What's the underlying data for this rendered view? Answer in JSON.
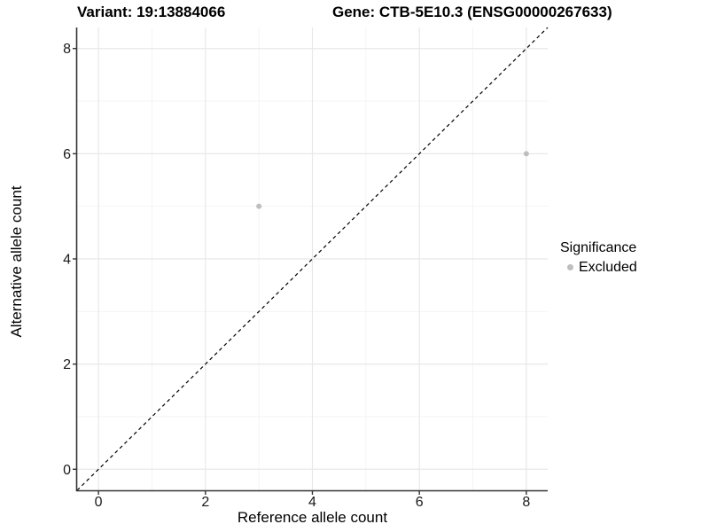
{
  "title": {
    "variant": "Variant: 19:13884066",
    "gene": "Gene: CTB-5E10.3 (ENSG00000267633)"
  },
  "chart_data": {
    "type": "scatter",
    "title_left": "Variant: 19:13884066",
    "title_right": "Gene: CTB-5E10.3 (ENSG00000267633)",
    "xlabel": "Reference allele count",
    "ylabel": "Alternative allele count",
    "xlim": [
      -0.4,
      8.4
    ],
    "ylim": [
      -0.4,
      8.4
    ],
    "xticks": [
      0,
      2,
      4,
      6,
      8
    ],
    "yticks": [
      0,
      2,
      4,
      6,
      8
    ],
    "xminor": [
      1,
      3,
      5,
      7
    ],
    "yminor": [
      1,
      3,
      5,
      7
    ],
    "grid": "major and minor gridlines on white background",
    "identity_line": {
      "style": "dashed",
      "from": [
        -0.4,
        -0.4
      ],
      "to": [
        8.4,
        8.4
      ],
      "color": "#000000"
    },
    "series": [
      {
        "name": "Excluded",
        "color": "#bebebe",
        "points": [
          {
            "x": 3,
            "y": 5
          },
          {
            "x": 8,
            "y": 6
          }
        ]
      }
    ]
  },
  "legend": {
    "title": "Significance",
    "items": [
      {
        "label": "Excluded",
        "color": "#bebebe",
        "marker": "circle"
      }
    ]
  },
  "colors": {
    "background": "#ffffff",
    "grid_major": "#e8e8e8",
    "grid_minor": "#f3f3f3",
    "axis_line": "#333333",
    "tick_text": "#1a1a1a",
    "title_text": "#000000",
    "point": "#bebebe"
  }
}
